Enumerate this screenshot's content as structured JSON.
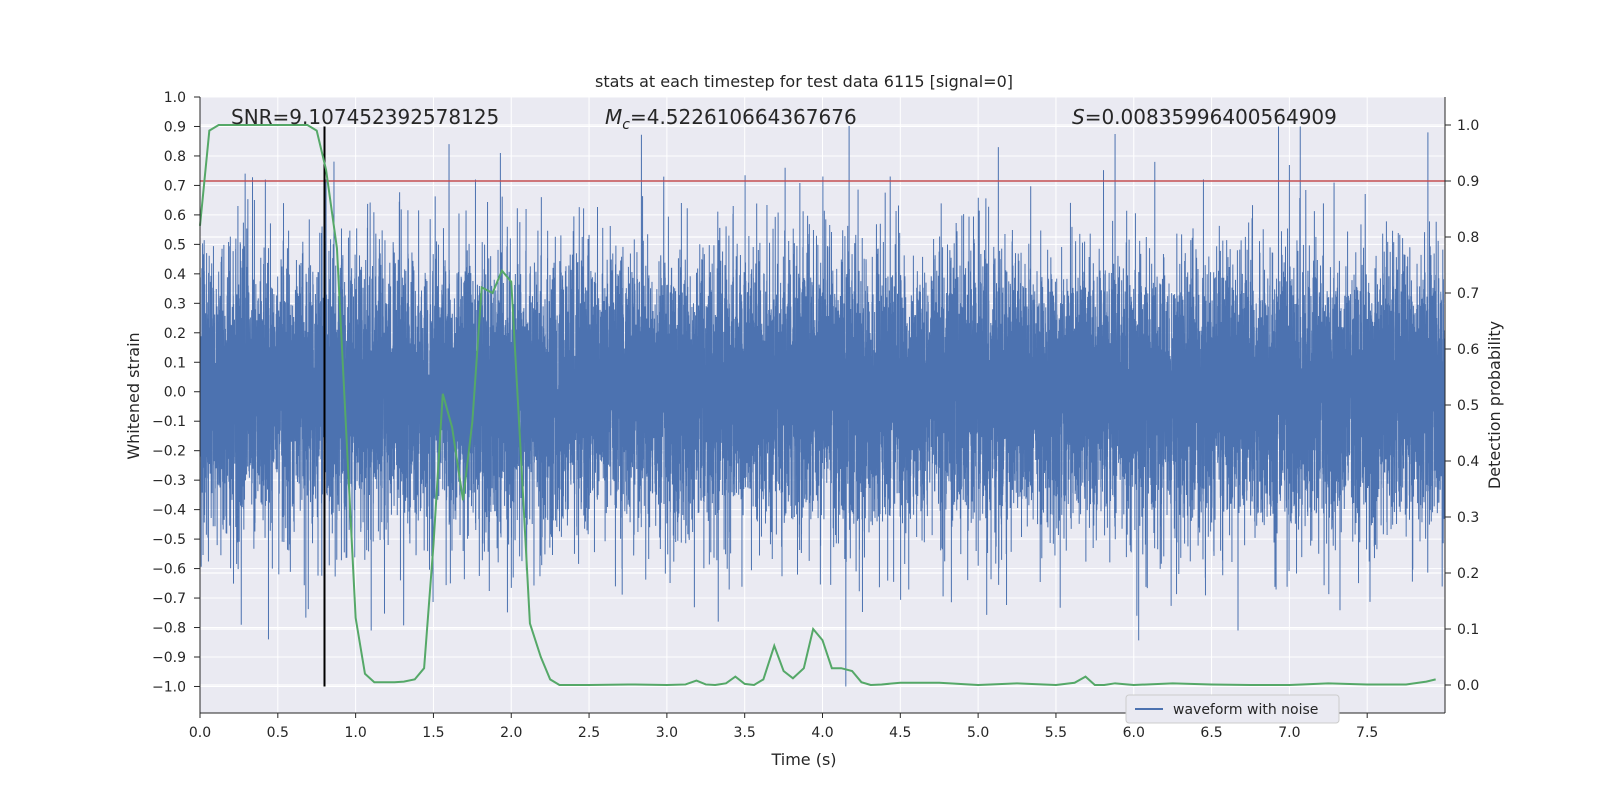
{
  "chart_data": {
    "type": "line",
    "title": "stats at each timestep for test data 6115 [signal=0]",
    "xlabel": "Time (s)",
    "ylabel": "Whitened strain",
    "y2label": "Detection probability",
    "xlim": [
      0.0,
      8.0
    ],
    "ylim": [
      -1.09,
      1.0
    ],
    "y2lim": [
      -0.05,
      1.05
    ],
    "xticks": [
      0.0,
      0.5,
      1.0,
      1.5,
      2.0,
      2.5,
      3.0,
      3.5,
      4.0,
      4.5,
      5.0,
      5.5,
      6.0,
      6.5,
      7.0,
      7.5
    ],
    "xtick_labels": [
      "0.0",
      "0.5",
      "1.0",
      "1.5",
      "2.0",
      "2.5",
      "3.0",
      "3.5",
      "4.0",
      "4.5",
      "5.0",
      "5.5",
      "6.0",
      "6.5",
      "7.0",
      "7.5"
    ],
    "yticks": [
      1.0,
      0.9,
      0.8,
      0.7,
      0.6,
      0.5,
      0.4,
      0.3,
      0.2,
      0.1,
      0.0,
      -0.1,
      -0.2,
      -0.3,
      -0.4,
      -0.5,
      -0.6,
      -0.7,
      -0.8,
      -0.9,
      -1.0
    ],
    "ytick_labels": [
      "1.0",
      "0.9",
      "0.8",
      "0.7",
      "0.6",
      "0.5",
      "0.4",
      "0.3",
      "0.2",
      "0.1",
      "0.0",
      "−0.1",
      "−0.2",
      "−0.3",
      "−0.4",
      "−0.5",
      "−0.6",
      "−0.7",
      "−0.8",
      "−0.9",
      "−1.0"
    ],
    "y2ticks": [
      1.0,
      0.9,
      0.8,
      0.7,
      0.6,
      0.5,
      0.4,
      0.3,
      0.2,
      0.1,
      0.0
    ],
    "y2tick_labels": [
      "1.0",
      "0.9",
      "0.8",
      "0.7",
      "0.6",
      "0.5",
      "0.4",
      "0.3",
      "0.2",
      "0.1",
      "0.0"
    ],
    "annotations": {
      "snr_label": "SNR=9.107452392578125",
      "mc_symbol": "M",
      "mc_sub": "c",
      "mc_value": "=4.522610664367676",
      "s_symbol": "S",
      "s_value": "=0.00835996400564909"
    },
    "legend": {
      "entries": [
        "waveform with noise"
      ],
      "location": "lower-right"
    },
    "threshold_line": {
      "axis": "right",
      "y": 0.9,
      "color": "#c44e52"
    },
    "vertical_marker": {
      "x": 0.8,
      "y_from": -1.0,
      "y_to": 0.9,
      "color": "#000000"
    },
    "series": [
      {
        "name": "waveform with noise",
        "axis": "left",
        "color": "#4c72b0",
        "kind": "dense-noise",
        "n_samples": 16384,
        "seed": 6115,
        "typical_abs": 0.3,
        "spikes": [
          {
            "x": 0.29,
            "y": 0.74
          },
          {
            "x": 0.42,
            "y": 0.72
          },
          {
            "x": 0.44,
            "y": -0.84
          },
          {
            "x": 0.81,
            "y": 0.72
          },
          {
            "x": 1.6,
            "y": 0.84
          },
          {
            "x": 1.93,
            "y": 0.81
          },
          {
            "x": 1.77,
            "y": 0.72
          },
          {
            "x": 2.98,
            "y": 0.73
          },
          {
            "x": 3.76,
            "y": 0.76
          },
          {
            "x": 4.15,
            "y": -1.0
          },
          {
            "x": 5.13,
            "y": 0.83
          },
          {
            "x": 6.93,
            "y": 0.9
          },
          {
            "x": 7.07,
            "y": 0.9
          },
          {
            "x": 7.89,
            "y": 0.88
          },
          {
            "x": 6.67,
            "y": -0.81
          },
          {
            "x": 3.33,
            "y": -0.78
          },
          {
            "x": 6.02,
            "y": -0.76
          },
          {
            "x": 1.1,
            "y": -0.81
          }
        ]
      },
      {
        "name": "detection probability",
        "axis": "right",
        "color": "#55a868",
        "x": [
          0.0,
          0.06,
          0.12,
          0.19,
          0.25,
          0.31,
          0.38,
          0.44,
          0.5,
          0.56,
          0.62,
          0.69,
          0.75,
          0.81,
          0.88,
          0.94,
          1.0,
          1.06,
          1.12,
          1.19,
          1.25,
          1.31,
          1.38,
          1.44,
          1.5,
          1.56,
          1.62,
          1.69,
          1.75,
          1.81,
          1.88,
          1.94,
          2.0,
          2.06,
          2.12,
          2.19,
          2.25,
          2.31,
          2.38,
          2.5,
          2.75,
          3.0,
          3.12,
          3.19,
          3.25,
          3.31,
          3.38,
          3.44,
          3.5,
          3.56,
          3.62,
          3.69,
          3.75,
          3.81,
          3.88,
          3.94,
          4.0,
          4.06,
          4.12,
          4.19,
          4.25,
          4.31,
          4.38,
          4.5,
          4.75,
          5.0,
          5.25,
          5.5,
          5.62,
          5.69,
          5.75,
          5.81,
          5.88,
          6.0,
          6.25,
          6.5,
          6.75,
          7.0,
          7.25,
          7.5,
          7.75,
          7.88,
          7.94
        ],
        "values": [
          0.82,
          0.99,
          1.0,
          1.0,
          1.0,
          1.0,
          1.0,
          1.0,
          1.0,
          1.0,
          1.0,
          1.0,
          0.99,
          0.92,
          0.78,
          0.45,
          0.12,
          0.02,
          0.005,
          0.005,
          0.005,
          0.006,
          0.01,
          0.03,
          0.25,
          0.52,
          0.46,
          0.33,
          0.47,
          0.71,
          0.7,
          0.74,
          0.72,
          0.42,
          0.11,
          0.05,
          0.01,
          0.0,
          0.0,
          0.0,
          0.001,
          0.0,
          0.001,
          0.008,
          0.001,
          0.0,
          0.003,
          0.015,
          0.002,
          0.0,
          0.01,
          0.07,
          0.025,
          0.012,
          0.03,
          0.1,
          0.08,
          0.03,
          0.03,
          0.025,
          0.005,
          0.0,
          0.001,
          0.004,
          0.004,
          0.0,
          0.003,
          0.0,
          0.004,
          0.015,
          0.0,
          0.0,
          0.003,
          0.0,
          0.003,
          0.001,
          0.0,
          0.0,
          0.003,
          0.001,
          0.001,
          0.006,
          0.01
        ]
      }
    ]
  }
}
